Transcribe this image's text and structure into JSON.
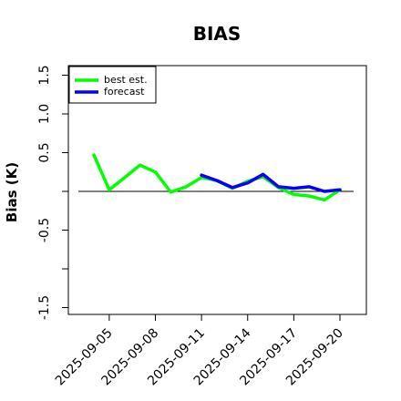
{
  "chart_data": {
    "type": "line",
    "title": "BIAS",
    "ylabel": "Bias (K)",
    "xlabel": "",
    "ylim": [
      -1.6,
      1.65
    ],
    "xrange": [
      "2025-09-04",
      "2025-09-21"
    ],
    "yticks": [
      -1.5,
      -1.0,
      -0.5,
      0.0,
      0.5,
      1.0,
      1.5
    ],
    "ytick_labels": [
      "-1.5",
      "",
      "-0.5",
      "",
      "0.5",
      "1.0",
      "1.5"
    ],
    "xticks": [
      "2025-09-05",
      "2025-09-08",
      "2025-09-11",
      "2025-09-14",
      "2025-09-17",
      "2025-09-20"
    ],
    "highlight_tick": "2025-09-11",
    "highlight_color": "#228B22",
    "zero_line": true,
    "legend_position": "top-left",
    "series": [
      {
        "name": "best est.",
        "color": "#00ff00",
        "x": [
          "2025-09-04",
          "2025-09-05",
          "2025-09-06",
          "2025-09-07",
          "2025-09-08",
          "2025-09-09",
          "2025-09-10",
          "2025-09-11",
          "2025-09-12",
          "2025-09-13",
          "2025-09-14",
          "2025-09-15",
          "2025-09-16",
          "2025-09-17",
          "2025-09-18",
          "2025-09-19",
          "2025-09-20"
        ],
        "values": [
          0.47,
          0.02,
          0.18,
          0.34,
          0.25,
          -0.01,
          0.06,
          0.18,
          0.14,
          0.04,
          0.13,
          0.19,
          0.05,
          -0.04,
          -0.06,
          -0.11,
          0.02
        ]
      },
      {
        "name": "forecast",
        "color": "#0000ff",
        "x": [
          "2025-09-11",
          "2025-09-12",
          "2025-09-13",
          "2025-09-14",
          "2025-09-15",
          "2025-09-16",
          "2025-09-17",
          "2025-09-18",
          "2025-09-19",
          "2025-09-20"
        ],
        "values": [
          0.21,
          0.14,
          0.05,
          0.11,
          0.22,
          0.06,
          0.04,
          0.06,
          0.0,
          0.02
        ]
      }
    ]
  }
}
